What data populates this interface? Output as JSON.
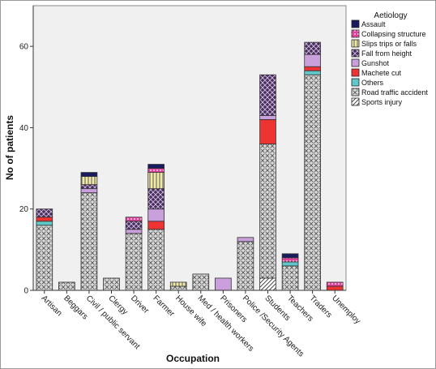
{
  "chart_data": {
    "type": "bar",
    "stacked": true,
    "title": "",
    "xlabel": "Occupation",
    "ylabel": "No of patients",
    "ylim": [
      0,
      70
    ],
    "yticks": [
      0,
      20,
      40,
      60
    ],
    "grid": false,
    "legend_title": "Aetiology",
    "legend_position": "top-right",
    "categories": [
      "Artisan",
      "Beggars",
      "Civil / public servant",
      "Clergy",
      "Driver",
      "Farmer",
      "House wife",
      "Med / health workers",
      "Prisoners",
      "Police /Security Agents",
      "Students",
      "Teachers",
      "Traders",
      "Unemploy"
    ],
    "series": [
      {
        "name": "Sports injury",
        "color": "#ffffff",
        "pattern": "diagonal",
        "values": [
          0,
          0,
          0,
          0,
          0,
          0,
          0,
          0,
          0,
          0,
          3,
          0,
          0,
          0
        ]
      },
      {
        "name": "Road traffic accident",
        "color": "#d9d9d9",
        "pattern": "crosshatch",
        "values": [
          16,
          2,
          24,
          3,
          14,
          15,
          1,
          4,
          0,
          12,
          33,
          6,
          53,
          0
        ]
      },
      {
        "name": "Others",
        "color": "#5fc7c9",
        "pattern": "none",
        "values": [
          1,
          0,
          0,
          0,
          0,
          0,
          0,
          0,
          0,
          0,
          0,
          1,
          1,
          0
        ]
      },
      {
        "name": "Machete cut",
        "color": "#ee3333",
        "pattern": "none",
        "values": [
          1,
          0,
          0,
          0,
          0,
          2,
          0,
          0,
          0,
          0,
          6,
          0,
          1,
          1
        ]
      },
      {
        "name": "Gunshot",
        "color": "#c9a0dc",
        "pattern": "none",
        "values": [
          0,
          0,
          1,
          0,
          1,
          3,
          0,
          0,
          3,
          1,
          1,
          0,
          3,
          0
        ]
      },
      {
        "name": "Fall from height",
        "color": "#4a2e5e",
        "pattern": "crosshatch-dark",
        "values": [
          2,
          0,
          1,
          0,
          2,
          5,
          0,
          0,
          0,
          0,
          10,
          0,
          3,
          0
        ]
      },
      {
        "name": "Slips trips or falls",
        "color": "#f0eaa6",
        "pattern": "vertical",
        "values": [
          0,
          0,
          2,
          0,
          0,
          4,
          1,
          0,
          0,
          0,
          0,
          0,
          0,
          0
        ]
      },
      {
        "name": "Collapsing structure",
        "color": "#e0409a",
        "pattern": "dots",
        "values": [
          0,
          0,
          0,
          0,
          1,
          1,
          0,
          0,
          0,
          0,
          0,
          1,
          0,
          1
        ]
      },
      {
        "name": "Assault",
        "color": "#1a1a5e",
        "pattern": "none",
        "values": [
          0,
          0,
          1,
          0,
          0,
          1,
          0,
          0,
          0,
          0,
          0,
          1,
          0,
          0
        ]
      }
    ],
    "legend_order": [
      "Assault",
      "Collapsing structure",
      "Slips trips or falls",
      "Fall from height",
      "Gunshot",
      "Machete cut",
      "Others",
      "Road traffic accident",
      "Sports injury"
    ]
  }
}
